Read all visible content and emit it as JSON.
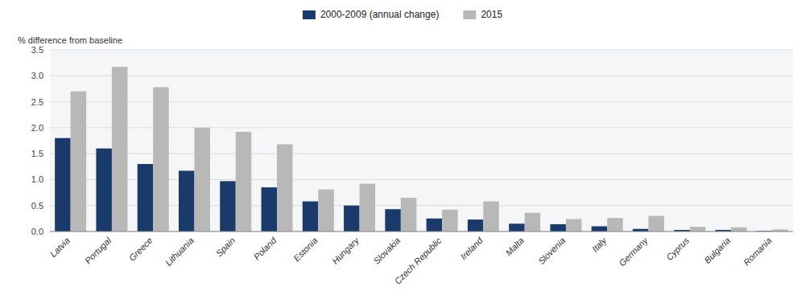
{
  "chart_data": {
    "type": "bar",
    "categories": [
      "Latvia",
      "Portugal",
      "Greece",
      "Lithuania",
      "Spain",
      "Poland",
      "Estonia",
      "Hungary",
      "Slovakia",
      "Czech Republic",
      "Ireland",
      "Malta",
      "Slovenia",
      "Italy",
      "Germany",
      "Cyprus",
      "Bulgaria",
      "Romania"
    ],
    "series": [
      {
        "name": "2000-2009 (annual change)",
        "color": "#1a3a6b",
        "values": [
          1.8,
          1.6,
          1.3,
          1.17,
          0.97,
          0.85,
          0.58,
          0.5,
          0.43,
          0.25,
          0.23,
          0.15,
          0.14,
          0.1,
          0.05,
          0.03,
          0.03,
          0.01
        ]
      },
      {
        "name": "2015",
        "color": "#b8b8b8",
        "values": [
          2.7,
          3.17,
          2.78,
          2.0,
          1.92,
          1.68,
          0.81,
          0.92,
          0.65,
          0.42,
          0.58,
          0.36,
          0.24,
          0.26,
          0.3,
          0.09,
          0.08,
          0.04
        ]
      }
    ],
    "ylabel": "% difference from baseline",
    "ylim": [
      0.0,
      3.5
    ],
    "yticks": [
      {
        "value": 0.0,
        "label": "0.0"
      },
      0.5,
      {
        "value": 1.0,
        "label": "1.0"
      },
      1.5,
      {
        "value": 2.0,
        "label": "2.0"
      },
      2.5,
      {
        "value": 3.0,
        "label": "3.0"
      },
      3.5
    ],
    "grid": true,
    "legend": "top"
  }
}
